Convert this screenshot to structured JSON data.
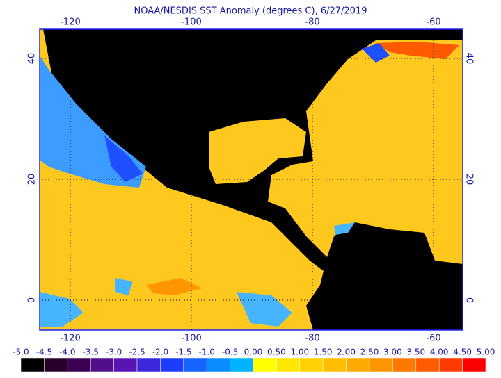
{
  "title": "NOAA/NESDIS SST Anomaly (degrees C), 6/27/2019",
  "longitude_ticks": [
    -120,
    -100,
    -80,
    -60
  ],
  "latitude_ticks": [
    0,
    20,
    40
  ],
  "colorbar": {
    "labels": [
      "-5.0",
      "-4.5",
      "-4.0",
      "-3.5",
      "-3.0",
      "-2.5",
      "-2.0",
      "-1.5",
      "-1.0",
      "-0.5",
      "0.00",
      "0.50",
      "1.00",
      "1.50",
      "2.00",
      "2.50",
      "3.00",
      "3.50",
      "4.00",
      "4.50",
      "5.00"
    ],
    "colors": [
      "#000000",
      "#2a0028",
      "#3c0050",
      "#50108c",
      "#5a14b4",
      "#3c28dc",
      "#1e3cff",
      "#1464ff",
      "#0a8cff",
      "#00b4ff",
      "#ffff00",
      "#ffe600",
      "#ffd200",
      "#ffbe00",
      "#ffaa00",
      "#ff9600",
      "#ff7800",
      "#ff5a00",
      "#ff3c00",
      "#ff0000"
    ]
  }
}
